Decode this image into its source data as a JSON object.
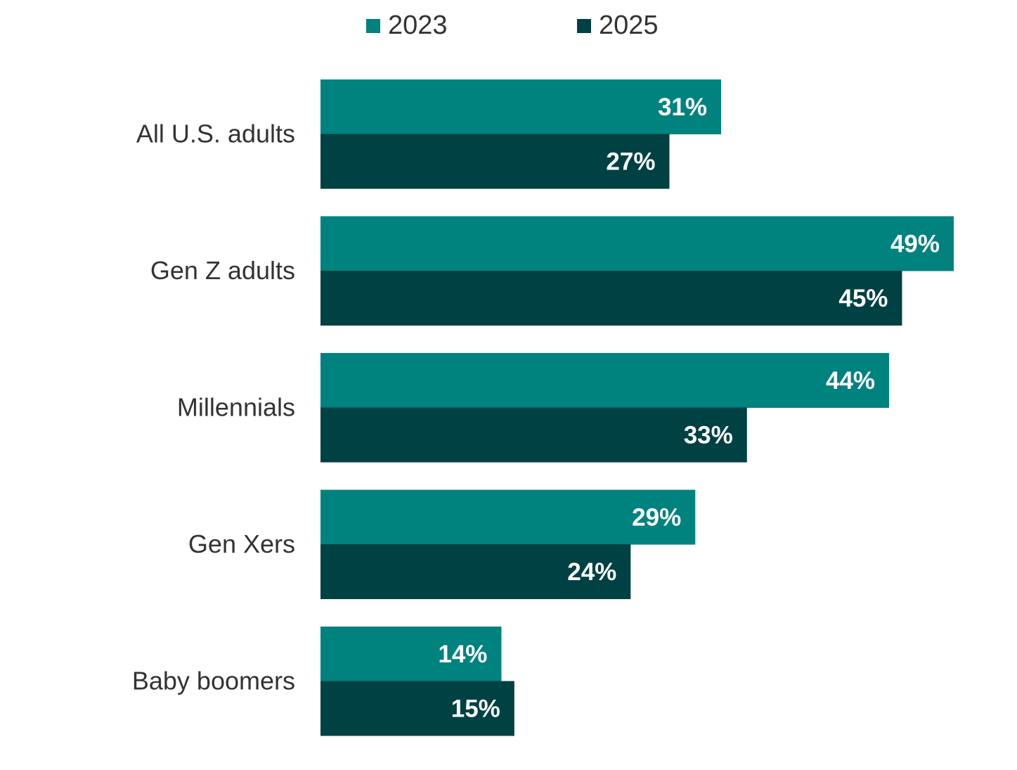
{
  "chart_data": {
    "type": "bar",
    "orientation": "horizontal",
    "title": "",
    "xlabel": "",
    "ylabel": "",
    "xlim": [
      0,
      49
    ],
    "grid": false,
    "legend_position": "top",
    "value_suffix": "%",
    "categories": [
      "All U.S. adults",
      "Gen Z adults",
      "Millennials",
      "Gen Xers",
      "Baby boomers"
    ],
    "series": [
      {
        "name": "2023",
        "color": "#00827F",
        "values": [
          31,
          49,
          44,
          29,
          14
        ]
      },
      {
        "name": "2025",
        "color": "#004143",
        "values": [
          27,
          45,
          33,
          24,
          15
        ]
      }
    ]
  }
}
